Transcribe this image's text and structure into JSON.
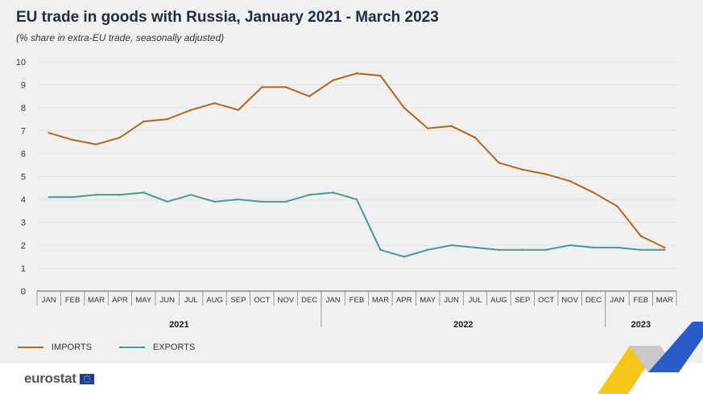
{
  "header": {
    "title": "EU trade in goods with Russia, January 2021 - March 2023",
    "subtitle": "(% share in extra-EU trade, seasonally adjusted)"
  },
  "brand": {
    "name": "eurostat"
  },
  "colors": {
    "imports": "#b5651d",
    "exports": "#4b9893",
    "axis": "#555555",
    "grid": "#e3e3e3"
  },
  "chart_data": {
    "type": "line",
    "title": "EU trade in goods with Russia, January 2021 - March 2023",
    "subtitle": "(% share in extra-EU trade, seasonally adjusted)",
    "ylim": [
      0,
      10
    ],
    "yticks": [
      "0",
      "1",
      "2",
      "3",
      "4",
      "5",
      "6",
      "7",
      "8",
      "9",
      "10"
    ],
    "categories": [
      "JAN",
      "FEB",
      "MAR",
      "APR",
      "MAY",
      "JUN",
      "JUL",
      "AUG",
      "SEP",
      "OCT",
      "NOV",
      "DEC",
      "JAN",
      "FEB",
      "MAR",
      "APR",
      "MAY",
      "JUN",
      "JUL",
      "AUG",
      "SEP",
      "OCT",
      "NOV",
      "DEC",
      "JAN",
      "FEB",
      "MAR"
    ],
    "years": [
      {
        "label": "2021",
        "start": 0,
        "end": 11
      },
      {
        "label": "2022",
        "start": 12,
        "end": 23
      },
      {
        "label": "2023",
        "start": 24,
        "end": 26
      }
    ],
    "grid": true,
    "legend_position": "bottom-left",
    "series": [
      {
        "name": "IMPORTS",
        "color": "#b5651d",
        "values": [
          6.9,
          6.6,
          6.4,
          6.7,
          7.4,
          7.5,
          7.9,
          8.2,
          7.9,
          8.9,
          8.9,
          8.5,
          9.2,
          9.5,
          9.4,
          8.0,
          7.1,
          7.2,
          6.7,
          5.6,
          5.3,
          5.1,
          4.8,
          4.3,
          3.7,
          2.4,
          1.9
        ]
      },
      {
        "name": "EXPORTS",
        "color": "#4b9893",
        "values": [
          4.1,
          4.1,
          4.2,
          4.2,
          4.3,
          3.9,
          4.2,
          3.9,
          4.0,
          3.9,
          3.9,
          4.2,
          4.3,
          4.0,
          1.8,
          1.5,
          1.8,
          2.0,
          1.9,
          1.8,
          1.8,
          1.8,
          2.0,
          1.9,
          1.9,
          1.8,
          1.8
        ]
      }
    ]
  }
}
